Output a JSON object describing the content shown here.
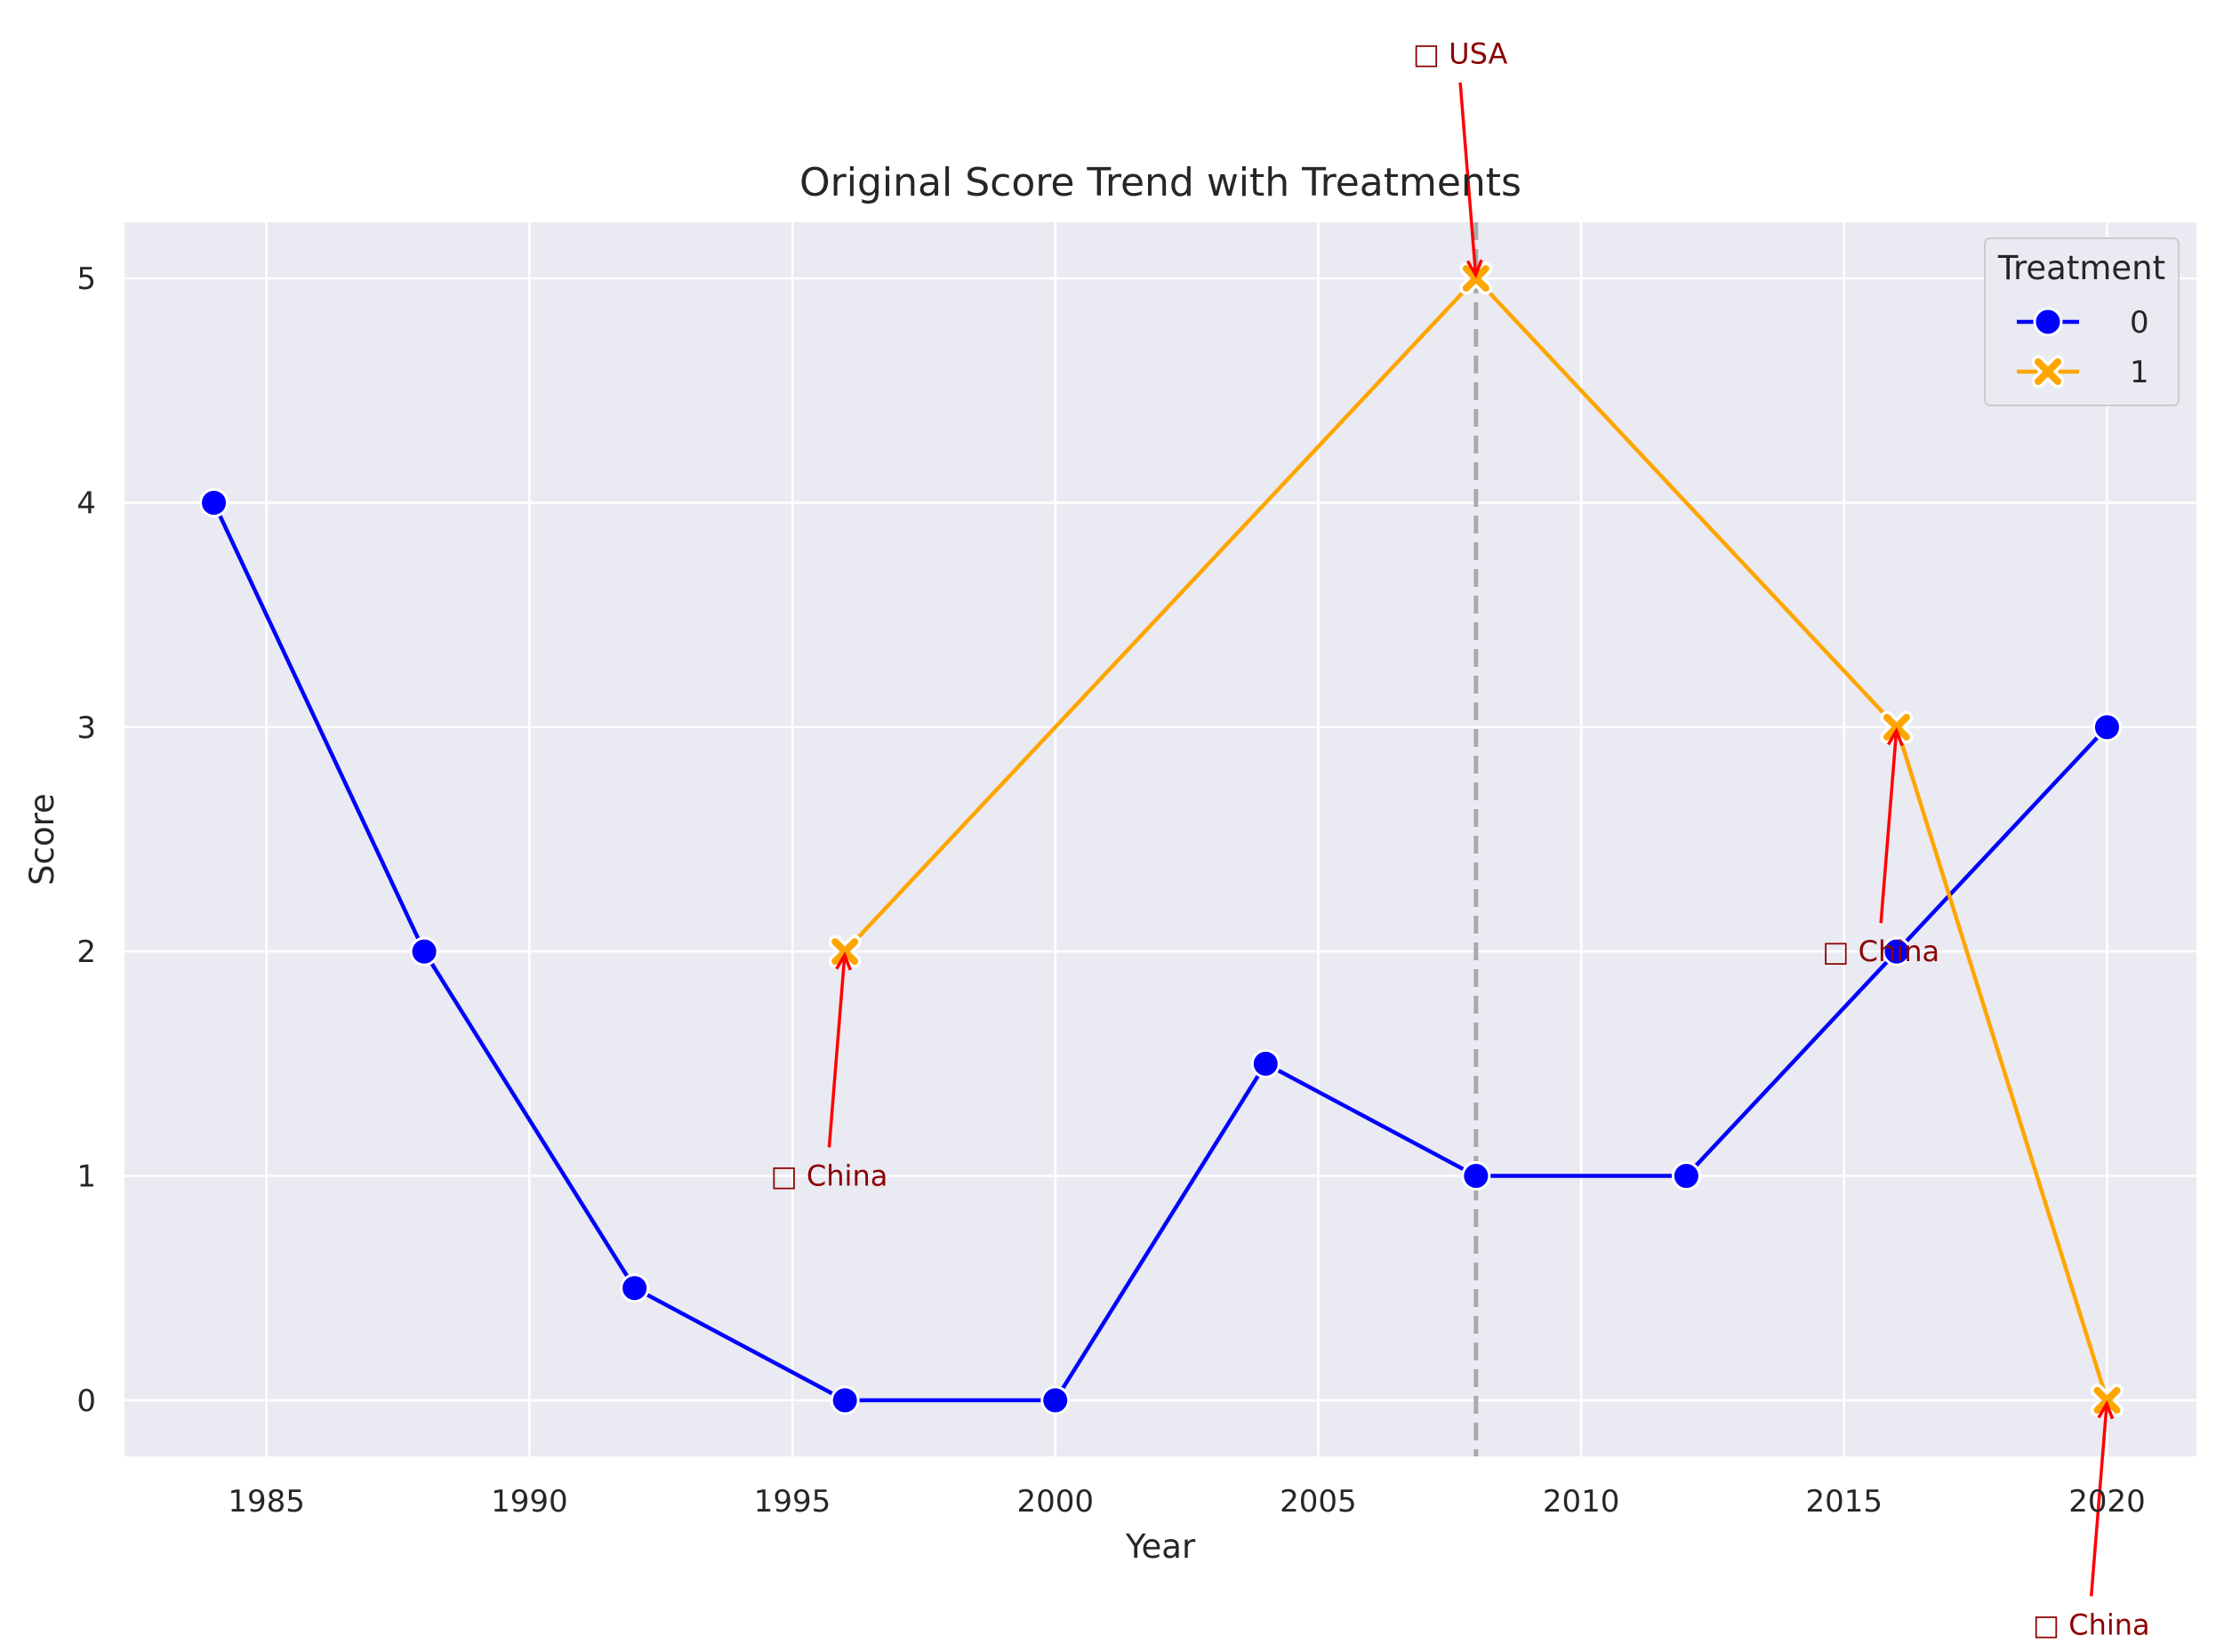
{
  "chart_data": {
    "type": "line",
    "title": "Original Score Trend with Treatments",
    "xlabel": "Year",
    "ylabel": "Score",
    "xlim": [
      1982.3,
      2021.7
    ],
    "ylim": [
      -0.25,
      5.25
    ],
    "x_ticks": [
      1985,
      1990,
      1995,
      2000,
      2005,
      2010,
      2015,
      2020
    ],
    "y_ticks": [
      0,
      1,
      2,
      3,
      4,
      5
    ],
    "grid": true,
    "legend": {
      "title": "Treatment",
      "placement": "top-right",
      "entries": [
        "0",
        "1"
      ]
    },
    "series": [
      {
        "name": "0",
        "color": "#0000ff",
        "marker": "circle",
        "x": [
          1984,
          1988,
          1992,
          1996,
          2000,
          2004,
          2008,
          2012,
          2016,
          2020
        ],
        "y": [
          4,
          2,
          0.5,
          0,
          0,
          1.5,
          1,
          1,
          2,
          3
        ]
      },
      {
        "name": "1",
        "color": "#ffa500",
        "marker": "x",
        "x": [
          1996,
          2008,
          2016,
          2020
        ],
        "y": [
          2,
          5,
          3,
          0
        ]
      }
    ],
    "vline": {
      "x": 2008,
      "color": "#aaaaaa",
      "style": "dashed"
    },
    "annotations": [
      {
        "text": "□ China",
        "x": 1996,
        "y": 2,
        "text_x": 1995.7,
        "text_y": 1.0
      },
      {
        "text": "□ USA",
        "x": 2008,
        "y": 5,
        "text_x": 2007.7,
        "text_y": 6.0
      },
      {
        "text": "□ China",
        "x": 2016,
        "y": 3,
        "text_x": 2015.7,
        "text_y": 2.0
      },
      {
        "text": "□ China",
        "x": 2020,
        "y": 0,
        "text_x": 2019.7,
        "text_y": -1.0
      }
    ],
    "colors": {
      "background": "#eaeaf2",
      "grid": "#ffffff",
      "annotation_text": "#8b0000",
      "arrow": "#ff0000"
    }
  }
}
